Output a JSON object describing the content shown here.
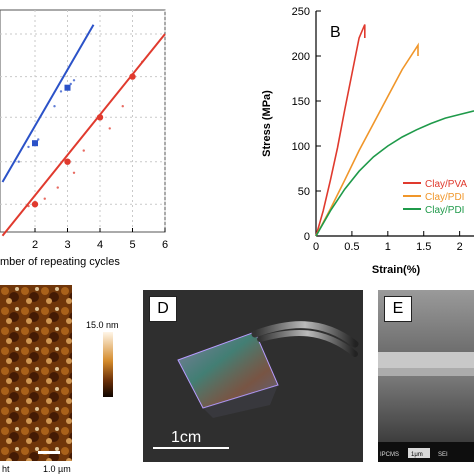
{
  "colors": {
    "series_blue": "#2b52c8",
    "series_red": "#e03a2e",
    "series_orange": "#f0962a",
    "series_green": "#1f9a4a",
    "photo_bg": "#2f2f2f"
  },
  "chart_data": [
    {
      "type": "scatter",
      "title": "",
      "xlabel": "mber of repeating cycles",
      "ylabel": "",
      "xlim": [
        0,
        6
      ],
      "xticks": [
        "2",
        "3",
        "4",
        "5",
        "6"
      ],
      "grid": true,
      "series": [
        {
          "color": "#2b52c8",
          "points": [
            [
              2,
              2.4
            ],
            [
              3,
              3.9
            ]
          ],
          "scatter": [
            [
              1.5,
              1.9
            ],
            [
              1.8,
              2.3
            ],
            [
              2.1,
              2.5
            ],
            [
              2.8,
              3.8
            ],
            [
              3.1,
              4.0
            ],
            [
              3.2,
              4.1
            ],
            [
              2.6,
              3.4
            ]
          ],
          "fit": [
            [
              1.0,
              1.35
            ],
            [
              3.8,
              5.6
            ]
          ]
        },
        {
          "color": "#e03a2e",
          "points": [
            [
              2,
              0.75
            ],
            [
              3,
              1.9
            ],
            [
              4,
              3.1
            ],
            [
              5,
              4.2
            ]
          ],
          "scatter": [
            [
              1.8,
              0.7
            ],
            [
              2.3,
              0.9
            ],
            [
              2.7,
              1.2
            ],
            [
              3.2,
              1.6
            ],
            [
              3.5,
              2.2
            ],
            [
              4.3,
              2.8
            ],
            [
              4.7,
              3.4
            ],
            [
              5.3,
              4.6
            ]
          ],
          "fit": [
            [
              1.0,
              -0.1
            ],
            [
              6.0,
              5.35
            ]
          ]
        }
      ]
    },
    {
      "type": "line",
      "panel_label": "B",
      "title": "",
      "xlabel": "Strain(%)",
      "ylabel": "Stress (MPa)",
      "xlim": [
        0,
        2.2
      ],
      "ylim": [
        0,
        250
      ],
      "xticks": [
        "0",
        "0.5",
        "1",
        "1.5",
        "2"
      ],
      "yticks": [
        "0",
        "50",
        "100",
        "150",
        "200",
        "250"
      ],
      "legend_position": "bottom-right",
      "series": [
        {
          "name": "Clay/PVA",
          "color": "#e03a2e",
          "points": [
            [
              0,
              0
            ],
            [
              0.1,
              28
            ],
            [
              0.2,
              62
            ],
            [
              0.3,
              98
            ],
            [
              0.4,
              140
            ],
            [
              0.5,
              180
            ],
            [
              0.6,
              220
            ],
            [
              0.68,
              235
            ],
            [
              0.68,
              220
            ]
          ]
        },
        {
          "name": "Clay/PDI",
          "color": "#f0962a",
          "points": [
            [
              0,
              0
            ],
            [
              0.2,
              30
            ],
            [
              0.4,
              62
            ],
            [
              0.6,
              95
            ],
            [
              0.8,
              125
            ],
            [
              1.0,
              155
            ],
            [
              1.2,
              185
            ],
            [
              1.42,
              212
            ],
            [
              1.42,
              200
            ]
          ]
        },
        {
          "name": "Clay/PDI",
          "color": "#1f9a4a",
          "points": [
            [
              0,
              0
            ],
            [
              0.2,
              28
            ],
            [
              0.4,
              52
            ],
            [
              0.6,
              72
            ],
            [
              0.8,
              88
            ],
            [
              1.0,
              100
            ],
            [
              1.2,
              110
            ],
            [
              1.4,
              118
            ],
            [
              1.6,
              125
            ],
            [
              1.8,
              131
            ],
            [
              2.0,
              135
            ],
            [
              2.2,
              139
            ]
          ]
        }
      ]
    }
  ],
  "panels": {
    "afm": {
      "scale_max": "15.0 nm",
      "scale_bar": "1.0 µm",
      "corner_text": "ht"
    },
    "photo_d": {
      "label": "D",
      "scale_bar": "1cm"
    },
    "sem_e": {
      "label": "E",
      "footer_left": "IPCMS",
      "footer_mid": "SEI",
      "footer_scale": "1μm"
    }
  }
}
